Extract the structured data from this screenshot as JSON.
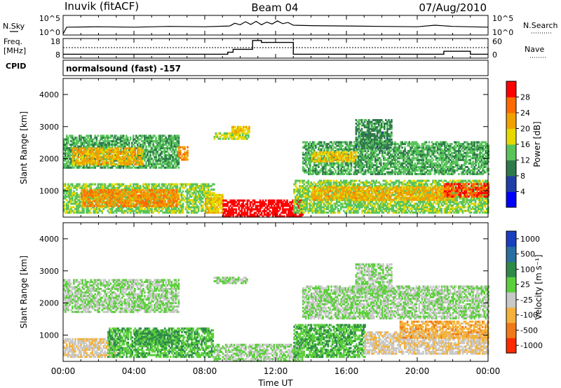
{
  "header": {
    "station": "Inuvik (fitACF)",
    "beam": "Beam 04",
    "date": "07/Aug/2010"
  },
  "nsky_panel": {
    "left_label": "N.Sky",
    "right_label": "N.Search",
    "left_ticks": [
      "10^5",
      "10^0"
    ],
    "right_ticks": [
      "10^5",
      "10^0"
    ]
  },
  "freq_panel": {
    "left_label_1": "Freq.",
    "left_label_2": "[MHz]",
    "left_ticks": [
      "18",
      "8"
    ],
    "right_ticks": [
      "60",
      "0"
    ],
    "right_label": "Nave",
    "cpid_label": "CPID",
    "cpid_text": "normalsound (fast) -157"
  },
  "power_panel": {
    "ylabel": "Slant Range [km]",
    "yticks": [
      "4000",
      "3000",
      "2000",
      "1000"
    ],
    "colorbar_label": "Power [dB]",
    "colorbar_ticks": [
      "28",
      "24",
      "20",
      "16",
      "12",
      "8",
      "4"
    ],
    "colors": [
      "#0000ff",
      "#1f3fa6",
      "#2f7a4a",
      "#58c45a",
      "#e6d800",
      "#f0a000",
      "#ff6a00",
      "#ff0000"
    ]
  },
  "velocity_panel": {
    "ylabel": "Slant Range [km]",
    "yticks": [
      "4000",
      "3000",
      "2000",
      "1000"
    ],
    "colorbar_label": "Velocity [m s⁻¹]",
    "colorbar_ticks": [
      "1000",
      "500",
      "100",
      "25",
      "-25",
      "-100",
      "-500",
      "-1000"
    ],
    "colors": [
      "#1a3fbf",
      "#2a6fa0",
      "#2f8a4a",
      "#5ccf3c",
      "#c8c8c8",
      "#f4b23a",
      "#f07a1a",
      "#ff2a00"
    ]
  },
  "xaxis": {
    "ticks": [
      "00:00",
      "04:00",
      "08:00",
      "12:00",
      "16:00",
      "20:00",
      "00:00"
    ],
    "label": "Time UT"
  },
  "chart_data": [
    {
      "type": "line",
      "title": "N.Sky / N.Search",
      "x_range_hours": [
        0,
        24
      ],
      "series": [
        {
          "name": "N.Sky",
          "x": [
            0.0,
            0.2,
            2.0,
            4.0,
            6.0,
            8.0,
            9.4,
            9.7,
            10.0,
            10.3,
            10.6,
            10.9,
            11.2,
            11.5,
            11.8,
            12.1,
            12.4,
            12.7,
            13.0,
            14.0,
            16.0,
            18.0,
            20.0,
            21.0,
            22.0,
            24.0
          ],
          "y": [
            0.3,
            2.0,
            2.1,
            2.0,
            2.2,
            2.1,
            2.3,
            3.0,
            2.6,
            3.4,
            2.7,
            3.5,
            2.6,
            3.3,
            2.8,
            3.6,
            2.9,
            3.2,
            2.5,
            2.4,
            2.3,
            2.2,
            2.1,
            2.5,
            2.2,
            2.0
          ]
        }
      ]
    },
    {
      "type": "line",
      "title": "Freq / Nave",
      "x_range_hours": [
        0,
        24
      ],
      "series": [
        {
          "name": "Freq. [MHz]",
          "x": [
            0,
            9.3,
            9.3,
            9.6,
            9.6,
            10.7,
            10.7,
            11.2,
            11.2,
            13.0,
            13.0,
            21.5,
            21.5,
            23.0,
            23.0,
            24
          ],
          "y": [
            10,
            10,
            11,
            11,
            12.5,
            12.5,
            17,
            17,
            16,
            16,
            10,
            10,
            11.5,
            11.5,
            10,
            10
          ]
        },
        {
          "name": "Nave",
          "x": [
            0,
            6,
            9,
            12,
            15,
            18,
            21,
            24
          ],
          "y": [
            32,
            32,
            32,
            32,
            32,
            32,
            32,
            32
          ]
        }
      ]
    },
    {
      "type": "heatmap",
      "title": "Power [dB]",
      "x_label": "Time UT",
      "y_label": "Slant Range [km]",
      "x_range_hours": [
        0,
        24
      ],
      "y_range_km": [
        180,
        4500
      ],
      "z_range": [
        0,
        30
      ],
      "colorbar_ticks": [
        4,
        8,
        12,
        16,
        20,
        24,
        28
      ],
      "regions": [
        {
          "t0": 0.0,
          "t1": 6.5,
          "r0": 1700,
          "r1": 2700,
          "z": 12
        },
        {
          "t0": 0.5,
          "t1": 4.5,
          "r0": 1800,
          "r1": 2300,
          "z": 20
        },
        {
          "t0": 0.0,
          "t1": 8.5,
          "r0": 300,
          "r1": 1200,
          "z": 14
        },
        {
          "t0": 1.0,
          "t1": 6.5,
          "r0": 500,
          "r1": 1000,
          "z": 22
        },
        {
          "t0": 6.5,
          "t1": 7.0,
          "r0": 1950,
          "r1": 2350,
          "z": 22
        },
        {
          "t0": 8.0,
          "t1": 9.0,
          "r0": 300,
          "r1": 900,
          "z": 18
        },
        {
          "t0": 9.0,
          "t1": 13.5,
          "r0": 180,
          "r1": 700,
          "z": 30
        },
        {
          "t0": 13.0,
          "t1": 24.0,
          "r0": 300,
          "r1": 1300,
          "z": 14
        },
        {
          "t0": 14.0,
          "t1": 22.0,
          "r0": 700,
          "r1": 1100,
          "z": 20
        },
        {
          "t0": 21.5,
          "t1": 24.0,
          "r0": 800,
          "r1": 1200,
          "z": 26
        },
        {
          "t0": 13.5,
          "t1": 24.0,
          "r0": 1500,
          "r1": 2500,
          "z": 12
        },
        {
          "t0": 14.0,
          "t1": 16.5,
          "r0": 1900,
          "r1": 2200,
          "z": 18
        },
        {
          "t0": 16.5,
          "t1": 18.5,
          "r0": 2300,
          "r1": 3200,
          "z": 10
        },
        {
          "t0": 8.5,
          "t1": 10.5,
          "r0": 2600,
          "r1": 2800,
          "z": 16
        },
        {
          "t0": 9.5,
          "t1": 10.5,
          "r0": 2800,
          "r1": 3000,
          "z": 18
        }
      ]
    },
    {
      "type": "heatmap",
      "title": "Velocity [m s^-1]",
      "x_label": "Time UT",
      "y_label": "Slant Range [km]",
      "x_range_hours": [
        0,
        24
      ],
      "y_range_km": [
        180,
        4500
      ],
      "z_range": [
        -1000,
        1000
      ],
      "colorbar_ticks": [
        1000,
        500,
        100,
        25,
        -25,
        -100,
        -500,
        -1000
      ],
      "regions": [
        {
          "t0": 0.0,
          "t1": 6.5,
          "r0": 1700,
          "r1": 2700,
          "z": 0
        },
        {
          "t0": 0.0,
          "t1": 3.0,
          "r0": 300,
          "r1": 900,
          "z": -200
        },
        {
          "t0": 2.5,
          "t1": 8.5,
          "r0": 300,
          "r1": 1200,
          "z": 200
        },
        {
          "t0": 4.0,
          "t1": 6.5,
          "r0": 700,
          "r1": 1100,
          "z": 300
        },
        {
          "t0": 8.5,
          "t1": 13.5,
          "r0": 180,
          "r1": 700,
          "z": 0
        },
        {
          "t0": 13.0,
          "t1": 17.0,
          "r0": 300,
          "r1": 1300,
          "z": 200
        },
        {
          "t0": 17.0,
          "t1": 24.0,
          "r0": 400,
          "r1": 1100,
          "z": -200
        },
        {
          "t0": 19.0,
          "t1": 24.0,
          "r0": 900,
          "r1": 1400,
          "z": -400
        },
        {
          "t0": 13.5,
          "t1": 24.0,
          "r0": 1500,
          "r1": 2500,
          "z": 0
        },
        {
          "t0": 16.5,
          "t1": 18.5,
          "r0": 2300,
          "r1": 3200,
          "z": 0
        },
        {
          "t0": 8.5,
          "t1": 10.5,
          "r0": 2600,
          "r1": 2800,
          "z": 0
        }
      ]
    }
  ]
}
